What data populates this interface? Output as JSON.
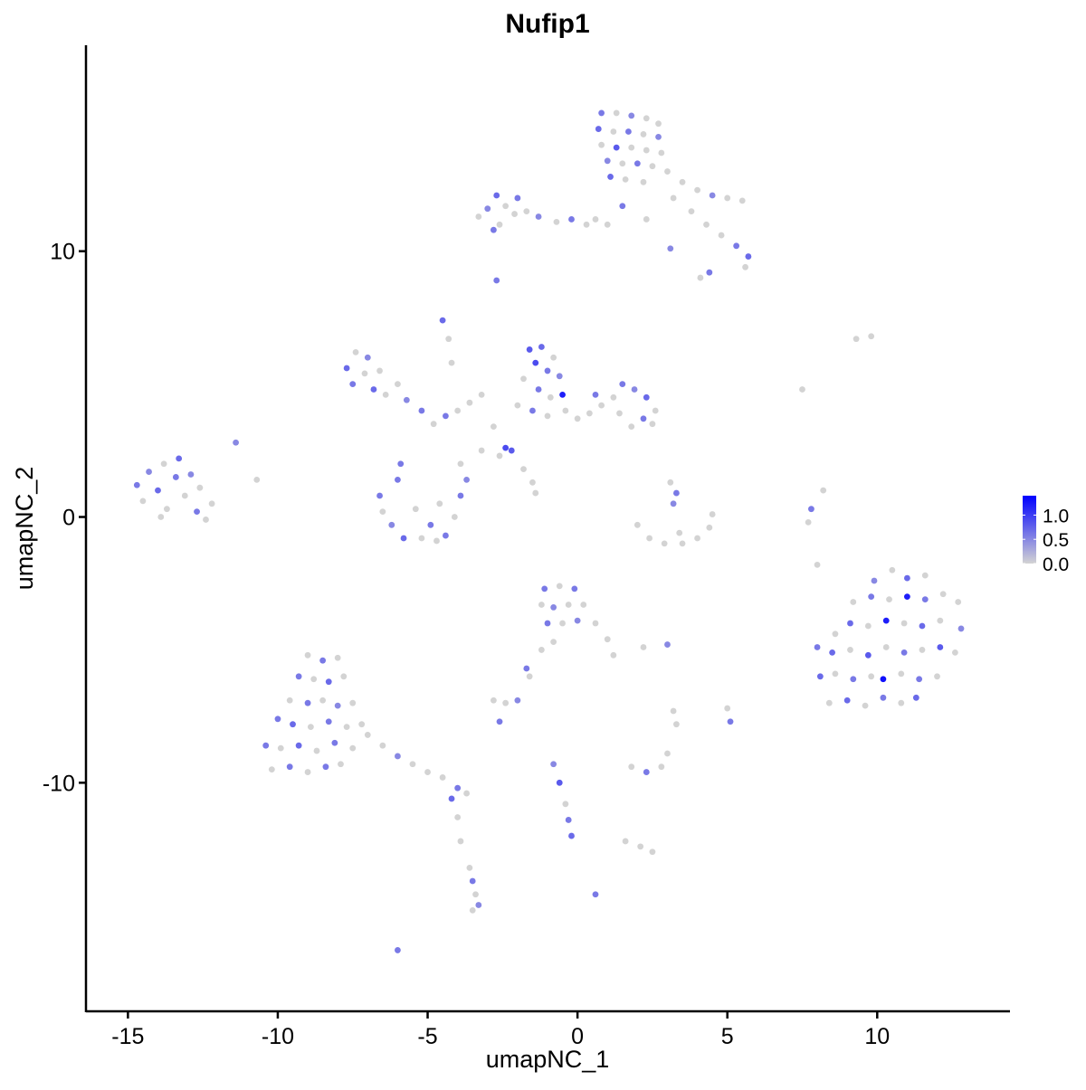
{
  "chart_data": {
    "type": "scatter",
    "title": "Nufip1",
    "xlabel": "umapNC_1",
    "ylabel": "umapNC_2",
    "xlim": [
      -16.4,
      14.4
    ],
    "ylim": [
      -18.6,
      17.75
    ],
    "xticks": [
      -15,
      -10,
      -5,
      0,
      5,
      10
    ],
    "yticks": [
      -10,
      0,
      10
    ],
    "xtick_labels": [
      "-15",
      "-10",
      "-5",
      "0",
      "5",
      "10"
    ],
    "ytick_labels": [
      "-10",
      "0",
      "10"
    ],
    "grid": false,
    "legend": {
      "placement": "right",
      "type": "colorbar",
      "range": [
        0,
        1.4
      ],
      "ticks": [
        0,
        0.5,
        1.0
      ],
      "tick_labels": [
        "0.0",
        "0.5",
        "1.0"
      ],
      "low_color": "#D3D3D3",
      "high_color": "#0000FF"
    },
    "point_format": [
      "umapNC_1",
      "umapNC_2",
      "expression"
    ],
    "points": [
      [
        0.8,
        15.2,
        0.6
      ],
      [
        1.3,
        15.2,
        0
      ],
      [
        1.8,
        15.1,
        0.5
      ],
      [
        2.3,
        15.0,
        0
      ],
      [
        2.7,
        14.8,
        0
      ],
      [
        0.7,
        14.6,
        0.7
      ],
      [
        1.2,
        14.5,
        0
      ],
      [
        1.7,
        14.5,
        0.6
      ],
      [
        2.2,
        14.4,
        0
      ],
      [
        2.7,
        14.3,
        0.5
      ],
      [
        0.8,
        14.0,
        0
      ],
      [
        1.3,
        13.9,
        0.8
      ],
      [
        1.8,
        13.9,
        0
      ],
      [
        2.3,
        13.8,
        0
      ],
      [
        2.8,
        13.7,
        0
      ],
      [
        1.0,
        13.4,
        0.5
      ],
      [
        1.5,
        13.3,
        0
      ],
      [
        2.0,
        13.3,
        0.6
      ],
      [
        2.5,
        13.2,
        0
      ],
      [
        1.1,
        12.8,
        0.7
      ],
      [
        1.6,
        12.7,
        0
      ],
      [
        2.2,
        12.6,
        0
      ],
      [
        3.0,
        13.0,
        0
      ],
      [
        3.5,
        12.6,
        0
      ],
      [
        4.0,
        12.3,
        0
      ],
      [
        4.5,
        12.1,
        0.5
      ],
      [
        5.0,
        12.0,
        0
      ],
      [
        5.5,
        11.9,
        0
      ],
      [
        3.2,
        12.0,
        0
      ],
      [
        3.8,
        11.5,
        0
      ],
      [
        4.3,
        11.0,
        0
      ],
      [
        4.8,
        10.6,
        0
      ],
      [
        5.3,
        10.2,
        0.6
      ],
      [
        5.7,
        9.8,
        0.7
      ],
      [
        5.6,
        9.4,
        0
      ],
      [
        4.4,
        9.2,
        0.6
      ],
      [
        4.1,
        9.0,
        0
      ],
      [
        3.1,
        10.1,
        0.5
      ],
      [
        2.3,
        11.2,
        0
      ],
      [
        1.5,
        11.7,
        0.6
      ],
      [
        -3.3,
        11.3,
        0
      ],
      [
        -3.0,
        11.6,
        0.5
      ],
      [
        -2.7,
        12.1,
        0.7
      ],
      [
        -2.4,
        11.7,
        0
      ],
      [
        -2.1,
        11.4,
        0
      ],
      [
        -2.6,
        11.0,
        0
      ],
      [
        -2.0,
        12.0,
        0.6
      ],
      [
        -1.7,
        11.5,
        0
      ],
      [
        -1.3,
        11.3,
        0.5
      ],
      [
        -0.7,
        11.1,
        0
      ],
      [
        -0.2,
        11.2,
        0.6
      ],
      [
        0.3,
        11.0,
        0
      ],
      [
        0.6,
        11.2,
        0
      ],
      [
        1.0,
        11.0,
        0
      ],
      [
        -2.8,
        10.8,
        0.6
      ],
      [
        -2.7,
        8.9,
        0.6
      ],
      [
        -4.5,
        7.4,
        0.7
      ],
      [
        -4.3,
        6.7,
        0
      ],
      [
        -4.2,
        5.8,
        0
      ],
      [
        -14.7,
        1.2,
        0.6
      ],
      [
        -14.5,
        0.6,
        0
      ],
      [
        -14.3,
        1.7,
        0.5
      ],
      [
        -14.0,
        1.0,
        0.7
      ],
      [
        -13.8,
        2.0,
        0
      ],
      [
        -13.7,
        0.3,
        0
      ],
      [
        -13.4,
        1.5,
        0.6
      ],
      [
        -13.3,
        2.2,
        0.7
      ],
      [
        -13.1,
        0.8,
        0
      ],
      [
        -12.9,
        1.6,
        0.5
      ],
      [
        -12.7,
        0.2,
        0.6
      ],
      [
        -12.6,
        1.1,
        0
      ],
      [
        -12.4,
        -0.1,
        0
      ],
      [
        -12.2,
        0.5,
        0
      ],
      [
        -13.9,
        0.0,
        0
      ],
      [
        -11.4,
        2.8,
        0.5
      ],
      [
        -10.7,
        1.4,
        0
      ],
      [
        -7.7,
        5.6,
        0.7
      ],
      [
        -7.4,
        6.2,
        0
      ],
      [
        -7.5,
        5.0,
        0.6
      ],
      [
        -7.1,
        5.4,
        0
      ],
      [
        -7.0,
        6.0,
        0.5
      ],
      [
        -6.8,
        4.8,
        0.7
      ],
      [
        -6.6,
        5.5,
        0
      ],
      [
        -6.4,
        4.6,
        0
      ],
      [
        -6.0,
        5.0,
        0
      ],
      [
        -5.7,
        4.4,
        0.5
      ],
      [
        -5.2,
        4.0,
        0.6
      ],
      [
        -4.8,
        3.5,
        0
      ],
      [
        -4.4,
        3.8,
        0.6
      ],
      [
        -4.0,
        4.0,
        0
      ],
      [
        -3.6,
        4.3,
        0
      ],
      [
        -3.2,
        4.6,
        0
      ],
      [
        -2.8,
        3.4,
        0
      ],
      [
        -3.2,
        2.5,
        0
      ],
      [
        -2.6,
        2.3,
        0
      ],
      [
        -2.4,
        2.6,
        0.9
      ],
      [
        -2.2,
        2.5,
        0.8
      ],
      [
        -1.8,
        1.8,
        0
      ],
      [
        -1.5,
        1.3,
        0
      ],
      [
        -1.4,
        0.9,
        0
      ],
      [
        -1.6,
        6.3,
        0.8
      ],
      [
        -1.2,
        6.4,
        0.7
      ],
      [
        -0.8,
        6.0,
        0
      ],
      [
        -1.4,
        5.8,
        0.9
      ],
      [
        -1.0,
        5.5,
        0.6
      ],
      [
        -0.6,
        5.3,
        0.5
      ],
      [
        -1.8,
        5.2,
        0
      ],
      [
        -1.3,
        4.8,
        0.6
      ],
      [
        -0.9,
        4.5,
        0
      ],
      [
        -0.5,
        4.6,
        1.2
      ],
      [
        -2.0,
        4.2,
        0
      ],
      [
        -1.5,
        4.0,
        0.6
      ],
      [
        -1.0,
        3.8,
        0
      ],
      [
        -0.4,
        4.0,
        0
      ],
      [
        0.0,
        3.7,
        0
      ],
      [
        0.4,
        3.9,
        0
      ],
      [
        0.8,
        4.2,
        0
      ],
      [
        0.6,
        4.6,
        0.6
      ],
      [
        1.2,
        4.5,
        0
      ],
      [
        1.5,
        5.0,
        0.6
      ],
      [
        1.9,
        4.8,
        0.5
      ],
      [
        2.3,
        4.5,
        0.7
      ],
      [
        2.6,
        4.0,
        0
      ],
      [
        2.2,
        3.7,
        0.6
      ],
      [
        1.8,
        3.4,
        0
      ],
      [
        2.5,
        3.5,
        0
      ],
      [
        1.4,
        3.9,
        0
      ],
      [
        -6.6,
        0.8,
        0.6
      ],
      [
        -6.5,
        0.2,
        0
      ],
      [
        -6.0,
        1.4,
        0.6
      ],
      [
        -6.2,
        -0.3,
        0.5
      ],
      [
        -5.8,
        -0.8,
        0.7
      ],
      [
        -5.4,
        0.3,
        0
      ],
      [
        -5.2,
        -0.8,
        0
      ],
      [
        -4.9,
        -0.3,
        0.6
      ],
      [
        -4.6,
        0.5,
        0
      ],
      [
        -4.4,
        -0.7,
        0.6
      ],
      [
        -4.1,
        0.0,
        0
      ],
      [
        -3.9,
        0.8,
        0.6
      ],
      [
        -3.7,
        1.4,
        0.5
      ],
      [
        -3.9,
        2.0,
        0
      ],
      [
        -5.9,
        2.0,
        0.6
      ],
      [
        -4.7,
        -0.9,
        0
      ],
      [
        3.1,
        1.3,
        0
      ],
      [
        3.3,
        0.9,
        0.6
      ],
      [
        3.2,
        0.5,
        0.5
      ],
      [
        2.0,
        -0.3,
        0
      ],
      [
        2.4,
        -0.8,
        0
      ],
      [
        2.9,
        -1.0,
        0
      ],
      [
        3.5,
        -1.0,
        0
      ],
      [
        4.0,
        -0.8,
        0
      ],
      [
        4.4,
        -0.4,
        0
      ],
      [
        4.5,
        0.1,
        0
      ],
      [
        3.4,
        -0.6,
        0
      ],
      [
        9.3,
        6.7,
        0
      ],
      [
        9.8,
        6.8,
        0
      ],
      [
        7.5,
        4.8,
        0
      ],
      [
        8.2,
        1.0,
        0
      ],
      [
        7.8,
        0.3,
        0.6
      ],
      [
        7.7,
        -0.2,
        0
      ],
      [
        8.0,
        -1.8,
        0
      ],
      [
        9.9,
        -2.4,
        0.5
      ],
      [
        10.5,
        -2.0,
        0
      ],
      [
        11.0,
        -2.3,
        0.7
      ],
      [
        11.6,
        -2.2,
        0
      ],
      [
        9.2,
        -3.2,
        0
      ],
      [
        9.8,
        -3.0,
        0.6
      ],
      [
        10.4,
        -3.1,
        0
      ],
      [
        11.0,
        -3.0,
        1.2
      ],
      [
        11.6,
        -3.1,
        0.6
      ],
      [
        12.2,
        -2.9,
        0
      ],
      [
        12.7,
        -3.2,
        0
      ],
      [
        8.6,
        -4.4,
        0
      ],
      [
        9.1,
        -4.0,
        0.7
      ],
      [
        9.7,
        -4.1,
        0
      ],
      [
        10.3,
        -3.9,
        1.2
      ],
      [
        10.9,
        -4.0,
        0
      ],
      [
        11.5,
        -4.1,
        0.7
      ],
      [
        12.1,
        -3.9,
        0
      ],
      [
        12.8,
        -4.2,
        0.5
      ],
      [
        8.0,
        -4.9,
        0.6
      ],
      [
        8.5,
        -5.1,
        0.7
      ],
      [
        9.1,
        -5.0,
        0
      ],
      [
        9.7,
        -5.2,
        0.8
      ],
      [
        10.3,
        -4.9,
        0
      ],
      [
        10.9,
        -5.1,
        0.6
      ],
      [
        11.5,
        -5.0,
        0
      ],
      [
        12.1,
        -4.9,
        0.8
      ],
      [
        12.6,
        -5.1,
        0
      ],
      [
        8.1,
        -6.0,
        0.7
      ],
      [
        8.6,
        -5.9,
        0
      ],
      [
        9.2,
        -6.1,
        0.6
      ],
      [
        9.8,
        -6.0,
        0
      ],
      [
        10.2,
        -6.1,
        1.3
      ],
      [
        10.8,
        -5.9,
        0
      ],
      [
        11.4,
        -6.1,
        0.6
      ],
      [
        12.0,
        -6.0,
        0
      ],
      [
        8.4,
        -7.0,
        0
      ],
      [
        9.0,
        -6.9,
        0.7
      ],
      [
        9.6,
        -7.1,
        0
      ],
      [
        10.2,
        -6.8,
        0.6
      ],
      [
        10.8,
        -7.0,
        0
      ],
      [
        11.3,
        -6.8,
        0.7
      ],
      [
        -9.0,
        -5.2,
        0
      ],
      [
        -8.5,
        -5.4,
        0.6
      ],
      [
        -8.0,
        -5.3,
        0
      ],
      [
        -9.3,
        -6.0,
        0.6
      ],
      [
        -8.8,
        -6.1,
        0
      ],
      [
        -8.3,
        -6.2,
        0.7
      ],
      [
        -7.8,
        -6.0,
        0
      ],
      [
        -9.6,
        -6.9,
        0
      ],
      [
        -9.0,
        -7.0,
        0.6
      ],
      [
        -8.5,
        -6.9,
        0
      ],
      [
        -8.0,
        -7.1,
        0.5
      ],
      [
        -7.5,
        -7.0,
        0
      ],
      [
        -10.0,
        -7.6,
        0.6
      ],
      [
        -9.5,
        -7.8,
        0.7
      ],
      [
        -8.9,
        -7.9,
        0
      ],
      [
        -8.3,
        -7.7,
        0.6
      ],
      [
        -7.7,
        -7.9,
        0
      ],
      [
        -7.2,
        -7.8,
        0
      ],
      [
        -10.4,
        -8.6,
        0.6
      ],
      [
        -9.9,
        -8.7,
        0
      ],
      [
        -9.3,
        -8.6,
        0.7
      ],
      [
        -8.7,
        -8.8,
        0
      ],
      [
        -8.1,
        -8.5,
        0.6
      ],
      [
        -7.5,
        -8.7,
        0
      ],
      [
        -10.2,
        -9.5,
        0
      ],
      [
        -9.6,
        -9.4,
        0.6
      ],
      [
        -9.0,
        -9.6,
        0
      ],
      [
        -8.4,
        -9.4,
        0.6
      ],
      [
        -7.9,
        -9.3,
        0
      ],
      [
        -7.0,
        -8.2,
        0
      ],
      [
        -6.5,
        -8.6,
        0
      ],
      [
        -6.0,
        -9.0,
        0.5
      ],
      [
        -5.5,
        -9.3,
        0
      ],
      [
        -5.0,
        -9.6,
        0
      ],
      [
        -4.5,
        -9.8,
        0
      ],
      [
        -4.0,
        -10.2,
        0.6
      ],
      [
        -3.7,
        -10.4,
        0
      ],
      [
        -4.2,
        -10.6,
        0.7
      ],
      [
        -4.0,
        -11.3,
        0
      ],
      [
        -3.9,
        -12.2,
        0
      ],
      [
        -3.6,
        -13.2,
        0
      ],
      [
        -3.5,
        -13.7,
        0.6
      ],
      [
        -3.4,
        -14.2,
        0
      ],
      [
        -3.5,
        -14.8,
        0
      ],
      [
        -3.3,
        -14.6,
        0.5
      ],
      [
        -6.0,
        -16.3,
        0.6
      ],
      [
        -1.1,
        -2.7,
        0.6
      ],
      [
        -0.6,
        -2.6,
        0
      ],
      [
        -0.1,
        -2.7,
        0.6
      ],
      [
        -1.2,
        -3.3,
        0
      ],
      [
        -0.8,
        -3.4,
        0.5
      ],
      [
        -0.3,
        -3.3,
        0
      ],
      [
        0.2,
        -3.3,
        0
      ],
      [
        -1.0,
        -4.0,
        0.6
      ],
      [
        -0.5,
        -4.0,
        0
      ],
      [
        0.0,
        -3.9,
        0.5
      ],
      [
        0.6,
        -4.0,
        0
      ],
      [
        1.0,
        -4.6,
        0
      ],
      [
        1.2,
        -5.2,
        0
      ],
      [
        -0.8,
        -4.7,
        0
      ],
      [
        -1.2,
        -5.0,
        0
      ],
      [
        -1.6,
        -6.0,
        0
      ],
      [
        -1.7,
        -5.7,
        0.6
      ],
      [
        -2.8,
        -6.9,
        0
      ],
      [
        -2.4,
        -7.0,
        0
      ],
      [
        -2.0,
        -6.9,
        0.5
      ],
      [
        -2.6,
        -7.7,
        0.6
      ],
      [
        2.2,
        -4.9,
        0
      ],
      [
        3.0,
        -4.8,
        0.5
      ],
      [
        3.2,
        -7.3,
        0
      ],
      [
        3.3,
        -7.8,
        0
      ],
      [
        5.0,
        -7.2,
        0
      ],
      [
        5.1,
        -7.7,
        0.6
      ],
      [
        1.8,
        -9.4,
        0
      ],
      [
        2.3,
        -9.6,
        0.6
      ],
      [
        2.8,
        -9.4,
        0
      ],
      [
        3.0,
        -8.9,
        0
      ],
      [
        2.1,
        -12.4,
        0
      ],
      [
        2.5,
        -12.6,
        0
      ],
      [
        -0.8,
        -9.3,
        0.5
      ],
      [
        -0.6,
        -10.0,
        0.8
      ],
      [
        -0.4,
        -10.8,
        0
      ],
      [
        -0.3,
        -11.4,
        0.6
      ],
      [
        -0.2,
        -12.0,
        0.7
      ],
      [
        0.6,
        -14.2,
        0.6
      ],
      [
        1.6,
        -12.2,
        0
      ]
    ]
  }
}
